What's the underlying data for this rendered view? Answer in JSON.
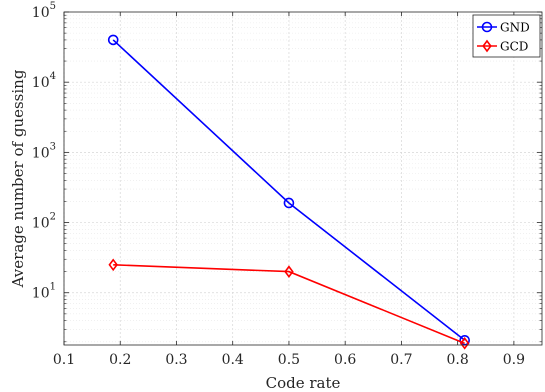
{
  "chart_data": {
    "type": "line",
    "xlabel": "Code rate",
    "ylabel": "Average number of guessing",
    "xlim": [
      0.1,
      0.95
    ],
    "ylim": [
      1.8,
      100000
    ],
    "yscale": "log",
    "grid": true,
    "legend_position": "top-right",
    "x_ticks": [
      "0.1",
      "0.2",
      "0.3",
      "0.4",
      "0.5",
      "0.6",
      "0.7",
      "0.8",
      "0.9"
    ],
    "y_ticks": [
      {
        "base": "10",
        "exp": "1"
      },
      {
        "base": "10",
        "exp": "2"
      },
      {
        "base": "10",
        "exp": "3"
      },
      {
        "base": "10",
        "exp": "4"
      },
      {
        "base": "10",
        "exp": "5"
      }
    ],
    "series": [
      {
        "name": "GND",
        "color": "#0000ff",
        "marker": "circle",
        "x": [
          0.1875,
          0.5,
          0.8125
        ],
        "y": [
          40000,
          190,
          2.1
        ]
      },
      {
        "name": "GCD",
        "color": "#ff0000",
        "marker": "diamond",
        "x": [
          0.1875,
          0.5,
          0.8125
        ],
        "y": [
          25,
          20,
          1.9
        ]
      }
    ]
  }
}
